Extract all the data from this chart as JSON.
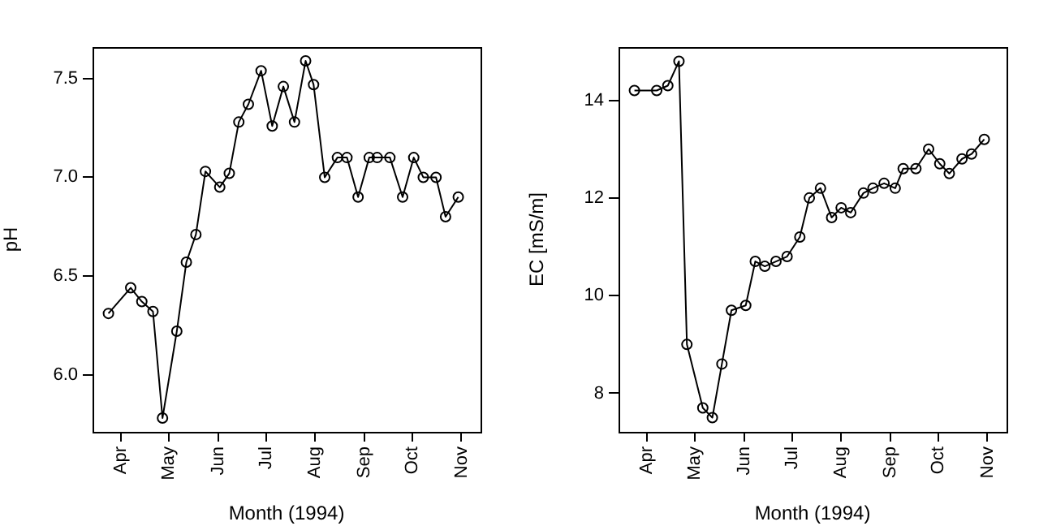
{
  "chart_data": [
    {
      "type": "line",
      "xlabel": "Month (1994)",
      "ylabel": "pH",
      "x": [
        "1994-03-24",
        "1994-04-07",
        "1994-04-14",
        "1994-04-21",
        "1994-04-27",
        "1994-05-06",
        "1994-05-12",
        "1994-05-18",
        "1994-05-24",
        "1994-06-02",
        "1994-06-08",
        "1994-06-14",
        "1994-06-20",
        "1994-06-28",
        "1994-07-05",
        "1994-07-12",
        "1994-07-19",
        "1994-07-26",
        "1994-07-31",
        "1994-08-07",
        "1994-08-15",
        "1994-08-21",
        "1994-08-28",
        "1994-09-04",
        "1994-09-09",
        "1994-09-17",
        "1994-09-25",
        "1994-10-02",
        "1994-10-08",
        "1994-10-16",
        "1994-10-22",
        "1994-10-30"
      ],
      "series": [
        {
          "color": "#000000",
          "values": [
            6.31,
            6.44,
            6.37,
            6.32,
            5.78,
            6.22,
            6.57,
            6.71,
            7.03,
            6.95,
            7.02,
            7.28,
            7.37,
            7.54,
            7.26,
            7.46,
            7.28,
            7.59,
            7.47,
            7.0,
            7.1,
            7.1,
            6.9,
            7.1,
            7.1,
            7.1,
            6.9,
            7.1,
            7.0,
            7.0,
            6.8,
            6.9
          ]
        }
      ],
      "xlim": [
        "1994-03-14",
        "1994-11-13"
      ],
      "xticks": [
        {
          "value": "1994-04-01",
          "label": "Apr"
        },
        {
          "value": "1994-05-01",
          "label": "May"
        },
        {
          "value": "1994-06-01",
          "label": "Jun"
        },
        {
          "value": "1994-07-01",
          "label": "Jul"
        },
        {
          "value": "1994-08-01",
          "label": "Aug"
        },
        {
          "value": "1994-09-01",
          "label": "Sep"
        },
        {
          "value": "1994-10-01",
          "label": "Oct"
        },
        {
          "value": "1994-11-01",
          "label": "Nov"
        }
      ],
      "ylim": [
        5.71,
        7.66
      ],
      "yticks": [
        {
          "value": 6.0,
          "label": "6.0"
        },
        {
          "value": 6.5,
          "label": "6.5"
        },
        {
          "value": 7.0,
          "label": "7.0"
        },
        {
          "value": 7.5,
          "label": "7.5"
        }
      ],
      "grid": false,
      "legend": false,
      "marker": "circle",
      "line_style": "solid"
    },
    {
      "type": "line",
      "xlabel": "Month (1994)",
      "ylabel": "EC [mS/m]",
      "x": [
        "1994-03-24",
        "1994-04-07",
        "1994-04-14",
        "1994-04-21",
        "1994-04-26",
        "1994-05-06",
        "1994-05-12",
        "1994-05-18",
        "1994-05-24",
        "1994-06-02",
        "1994-06-08",
        "1994-06-14",
        "1994-06-21",
        "1994-06-28",
        "1994-07-06",
        "1994-07-12",
        "1994-07-19",
        "1994-07-26",
        "1994-08-01",
        "1994-08-07",
        "1994-08-15",
        "1994-08-21",
        "1994-08-28",
        "1994-09-04",
        "1994-09-09",
        "1994-09-17",
        "1994-09-25",
        "1994-10-02",
        "1994-10-08",
        "1994-10-16",
        "1994-10-22",
        "1994-10-30"
      ],
      "series": [
        {
          "color": "#000000",
          "values": [
            14.2,
            14.2,
            14.3,
            14.8,
            9.0,
            7.7,
            7.5,
            8.6,
            9.7,
            9.8,
            10.7,
            10.6,
            10.7,
            10.8,
            11.2,
            12.0,
            12.2,
            11.6,
            11.8,
            11.7,
            12.1,
            12.2,
            12.3,
            12.2,
            12.6,
            12.6,
            13.0,
            12.7,
            12.5,
            12.8,
            12.9,
            13.2
          ]
        }
      ],
      "xlim": [
        "1994-03-14",
        "1994-11-13"
      ],
      "xticks": [
        {
          "value": "1994-04-01",
          "label": "Apr"
        },
        {
          "value": "1994-05-01",
          "label": "May"
        },
        {
          "value": "1994-06-01",
          "label": "Jun"
        },
        {
          "value": "1994-07-01",
          "label": "Jul"
        },
        {
          "value": "1994-08-01",
          "label": "Aug"
        },
        {
          "value": "1994-09-01",
          "label": "Sep"
        },
        {
          "value": "1994-10-01",
          "label": "Oct"
        },
        {
          "value": "1994-11-01",
          "label": "Nov"
        }
      ],
      "ylim": [
        7.21,
        15.09
      ],
      "yticks": [
        8,
        10,
        12,
        14
      ],
      "grid": false,
      "legend": false,
      "marker": "circle",
      "line_style": "solid"
    }
  ]
}
